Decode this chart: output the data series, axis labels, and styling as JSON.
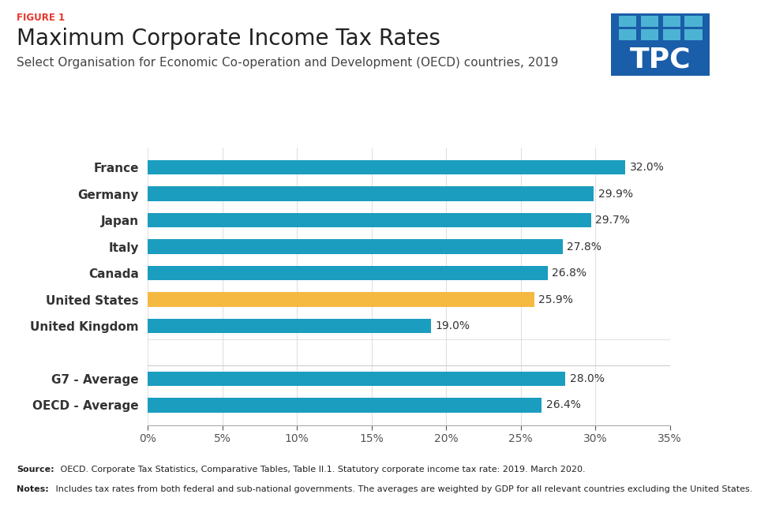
{
  "figure_label": "FIGURE 1",
  "title": "Maximum Corporate Income Tax Rates",
  "subtitle": "Select Organisation for Economic Co-operation and Development (OECD) countries, 2019",
  "categories": [
    "France",
    "Germany",
    "Japan",
    "Italy",
    "Canada",
    "United States",
    "United Kingdom",
    "",
    "G7 - Average",
    "OECD - Average"
  ],
  "values": [
    32.0,
    29.9,
    29.7,
    27.8,
    26.8,
    25.9,
    19.0,
    0,
    28.0,
    26.4
  ],
  "bar_colors": [
    "#1a9dbf",
    "#1a9dbf",
    "#1a9dbf",
    "#1a9dbf",
    "#1a9dbf",
    "#f5b942",
    "#1a9dbf",
    null,
    "#1a9dbf",
    "#1a9dbf"
  ],
  "teal_color": "#1a9dbf",
  "orange_color": "#f5b942",
  "labels": [
    "32.0%",
    "29.9%",
    "29.7%",
    "27.8%",
    "26.8%",
    "25.9%",
    "19.0%",
    "",
    "28.0%",
    "26.4%"
  ],
  "xlim": [
    0,
    35
  ],
  "xticks": [
    0,
    5,
    10,
    15,
    20,
    25,
    30,
    35
  ],
  "xtick_labels": [
    "0%",
    "5%",
    "10%",
    "15%",
    "20%",
    "25%",
    "30%",
    "35%"
  ],
  "background_color": "#ffffff",
  "source_bold": "Source:",
  "source_rest": " OECD. Corporate Tax Statistics, Comparative Tables, Table II.1. Statutory corporate income tax rate: 2019. March 2020.",
  "notes_bold": "Notes:",
  "notes_rest": " Includes tax rates from both federal and sub-national governments. The averages are weighted by GDP for all relevant countries excluding the United States.",
  "figure_label_color": "#e8372c",
  "title_fontsize": 20,
  "subtitle_fontsize": 11,
  "bar_height": 0.55,
  "tpc_dark": "#1a5da8",
  "tpc_light": "#4db3d4",
  "tpc_bg": "#1a5da8",
  "grid_color": "#e0e0e0",
  "label_fontsize": 10,
  "ytick_fontsize": 11
}
